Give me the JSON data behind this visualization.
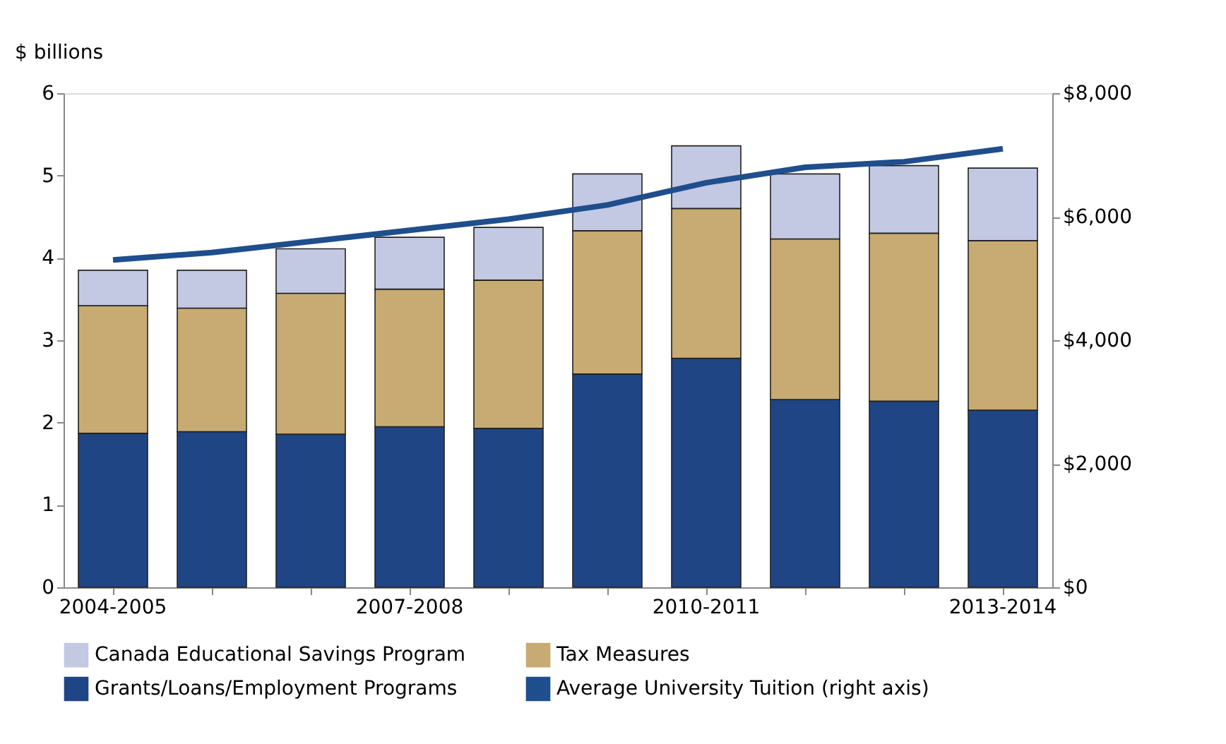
{
  "chart_data": {
    "type": "bar",
    "stacked": true,
    "ylabel": "$ billions",
    "categories": [
      "2004-2005",
      null,
      null,
      "2007-2008",
      null,
      null,
      "2010-2011",
      null,
      null,
      "2013-2014"
    ],
    "series": [
      {
        "name": "Grants/Loans/Employment Programs",
        "color": "#1f4585",
        "values": [
          1.87,
          1.89,
          1.86,
          1.95,
          1.93,
          2.59,
          2.78,
          2.28,
          2.26,
          2.15
        ]
      },
      {
        "name": "Tax Measures",
        "color": "#c8ab72",
        "values": [
          1.55,
          1.5,
          1.71,
          1.67,
          1.8,
          1.74,
          1.82,
          1.95,
          2.04,
          2.06
        ]
      },
      {
        "name": "Canada Educational Savings Program",
        "color": "#c3c8e3",
        "values": [
          0.43,
          0.46,
          0.54,
          0.63,
          0.64,
          0.69,
          0.76,
          0.79,
          0.82,
          0.88
        ]
      },
      {
        "name": "Average University Tuition (right axis)",
        "type": "line",
        "axis": "y2",
        "color": "#1f4e8c",
        "values": [
          5300,
          5420,
          5600,
          5780,
          5960,
          6190,
          6550,
          6800,
          6890,
          7100
        ]
      }
    ],
    "ylim": [
      0,
      6
    ],
    "yticks": [
      0,
      1,
      2,
      3,
      4,
      5,
      6
    ],
    "y2lim": [
      0,
      8000
    ],
    "y2ticks": [
      {
        "value": 0,
        "label": "$0"
      },
      {
        "value": 2000,
        "label": "$2,000"
      },
      {
        "value": 4000,
        "label": "$4,000"
      },
      {
        "value": 6000,
        "label": "$6,000"
      },
      {
        "value": 8000,
        "label": "$8,000"
      }
    ],
    "grid": false,
    "legend": "bottom",
    "marker": "none",
    "line_style": "solid"
  }
}
